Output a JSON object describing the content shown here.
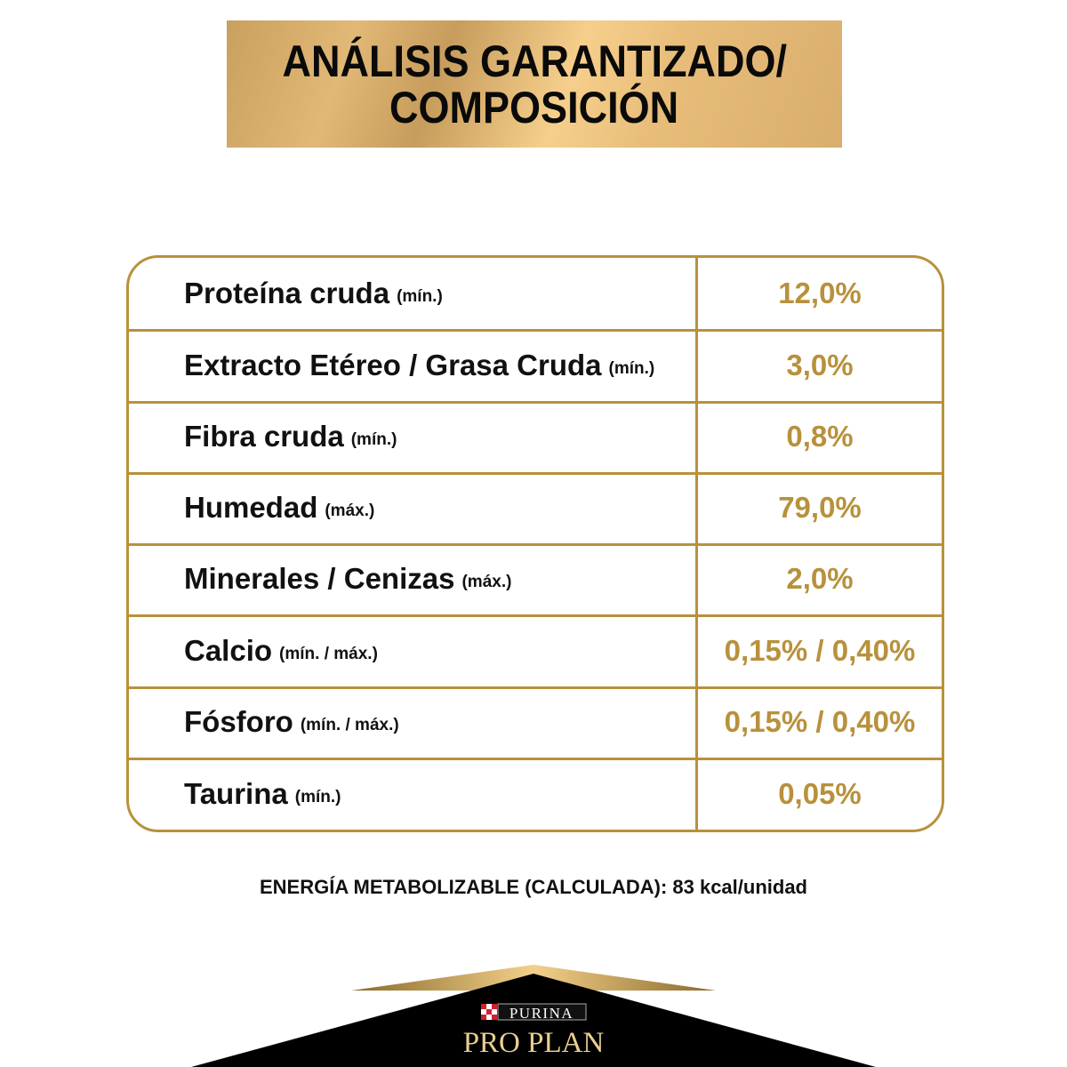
{
  "header": {
    "title_line1": "ANÁLISIS GARANTIZADO/",
    "title_line2": "COMPOSICIÓN"
  },
  "rows": [
    {
      "label": "Proteína cruda",
      "qualifier": "(mín.)",
      "value": "12,0%"
    },
    {
      "label": "Extracto Etéreo / Grasa Cruda",
      "qualifier": "(mín.)",
      "value": "3,0%"
    },
    {
      "label": "Fibra cruda",
      "qualifier": "(mín.)",
      "value": "0,8%"
    },
    {
      "label": "Humedad",
      "qualifier": "(máx.)",
      "value": "79,0%"
    },
    {
      "label": "Minerales / Cenizas",
      "qualifier": "(máx.)",
      "value": "2,0%"
    },
    {
      "label": "Calcio",
      "qualifier": "(mín. / máx.)",
      "value": "0,15% / 0,40%"
    },
    {
      "label": "Fósforo",
      "qualifier": "(mín. / máx.)",
      "value": "0,15% / 0,40%"
    },
    {
      "label": "Taurina",
      "qualifier": "(mín.)",
      "value": "0,05%"
    }
  ],
  "energy": "ENERGÍA METABOLIZABLE (CALCULADA): 83  kcal/unidad",
  "logo": {
    "brand": "PURINA",
    "product": "PRO PLAN"
  },
  "colors": {
    "gold": "#b8913c",
    "black": "#000000"
  }
}
